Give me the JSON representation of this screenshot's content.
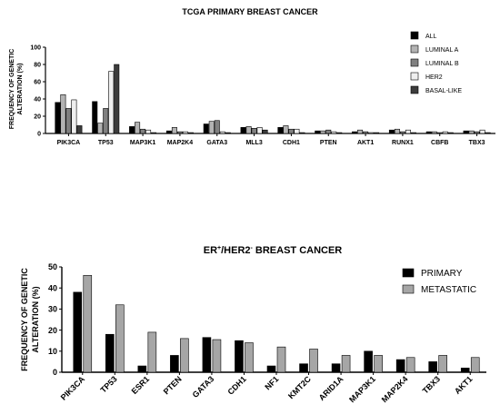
{
  "chart_data": [
    {
      "type": "bar",
      "title": "TCGA PRIMARY BREAST CANCER",
      "ylabel_line1": "FREQUENCY OF GENETIC",
      "ylabel_line2": "ALTERATION (%)",
      "ylim": [
        0,
        100
      ],
      "yticks": [
        "0",
        "20",
        "40",
        "60",
        "80",
        "100"
      ],
      "categories": [
        "PIK3CA",
        "TP53",
        "MAP3K1",
        "MAP2K4",
        "GATA3",
        "MLL3",
        "CDH1",
        "PTEN",
        "AKT1",
        "RUNX1",
        "CBFB",
        "TBX3"
      ],
      "legend_position": "top-right",
      "series": [
        {
          "name": "ALL",
          "color": "#000000",
          "values": [
            36,
            37,
            8,
            3,
            11,
            7,
            7,
            3,
            2,
            4,
            2,
            3
          ]
        },
        {
          "name": "LUMINAL A",
          "color": "#b3b3b3",
          "values": [
            45,
            12,
            13,
            7,
            14,
            8,
            9,
            3,
            4,
            5,
            2,
            3
          ]
        },
        {
          "name": "LUMINAL B",
          "color": "#808080",
          "values": [
            29,
            29,
            5,
            2,
            15,
            6,
            5,
            4,
            2,
            2,
            1,
            2
          ]
        },
        {
          "name": "HER2",
          "color": "#efefef",
          "values": [
            39,
            72,
            4,
            2,
            2,
            7,
            5,
            2,
            1,
            4,
            2,
            4
          ]
        },
        {
          "name": "BASAL-LIKE",
          "color": "#3c3c3c",
          "values": [
            9,
            80,
            1,
            1,
            1,
            4,
            1,
            1,
            1,
            1,
            1,
            1
          ]
        }
      ]
    },
    {
      "type": "bar",
      "title_main": "ER",
      "title_sup1": "+",
      "title_mid": "/HER2",
      "title_sup2": "-",
      "title_end": " BREAST CANCER",
      "ylabel_line1": "FREQUENCY OF GENETIC",
      "ylabel_line2": "ALTERATION (%)",
      "ylim": [
        0,
        50
      ],
      "yticks": [
        "0",
        "10",
        "20",
        "30",
        "40",
        "50"
      ],
      "categories": [
        "PIK3CA",
        "TP53",
        "ESR1",
        "PTEN",
        "GATA3",
        "CDH1",
        "NF1",
        "KMT2C",
        "ARID1A",
        "MAP3K1",
        "MAP2K4",
        "TBX3",
        "AKT1"
      ],
      "legend_position": "top-right",
      "series": [
        {
          "name": "PRIMARY",
          "color": "#000000",
          "values": [
            38,
            18,
            3,
            8,
            16.5,
            15,
            3,
            4,
            4,
            10,
            6,
            5,
            2
          ]
        },
        {
          "name": "METASTATIC",
          "color": "#a6a6a6",
          "values": [
            46,
            32,
            19,
            16,
            15.5,
            14,
            12,
            11,
            8,
            8,
            7,
            8,
            7
          ]
        }
      ]
    }
  ]
}
